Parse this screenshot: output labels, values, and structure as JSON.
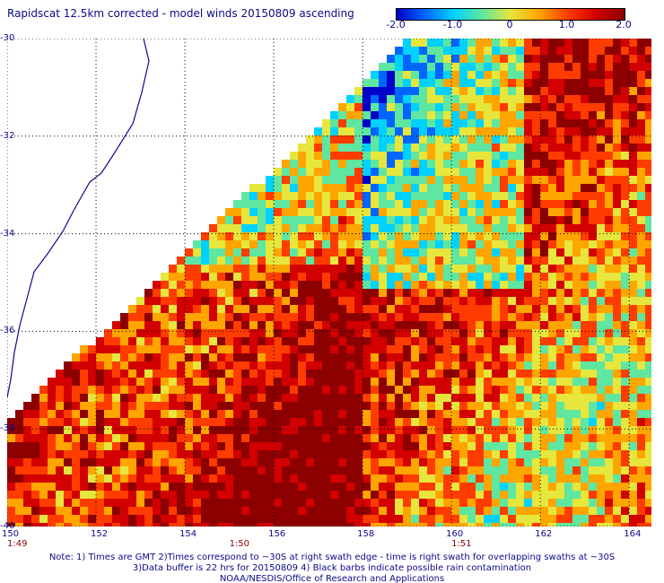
{
  "title": "Rapidscat 12.5km corrected - model winds 20150809 ascending",
  "colorbar": {
    "ticks": [
      "-2.0",
      "-1.0",
      "0",
      "1.0",
      "2.0"
    ],
    "tick_values": [
      -2.0,
      -1.0,
      0,
      1.0,
      2.0
    ],
    "colors": [
      "#0000c8",
      "#0066ff",
      "#00d2ff",
      "#5fe6a0",
      "#e6e63c",
      "#ffa500",
      "#ff3c00",
      "#d20000",
      "#8c0000"
    ]
  },
  "axes": {
    "lon_labels": [
      "150",
      "152",
      "154",
      "156",
      "158",
      "160",
      "162",
      "164"
    ],
    "lon_values": [
      150,
      152,
      154,
      156,
      158,
      160,
      162,
      164
    ],
    "lat_labels": [
      "-30",
      "-32",
      "-34",
      "-36",
      "-38",
      "-40"
    ],
    "lat_values": [
      -30,
      -32,
      -34,
      -36,
      -38,
      -40
    ],
    "lon_range": [
      150,
      164.5
    ],
    "lat_range": [
      -30,
      -40
    ]
  },
  "time_labels": [
    {
      "text": "1:49",
      "lon": 150
    },
    {
      "text": "1:50",
      "lon": 155
    },
    {
      "text": "1:51",
      "lon": 160
    }
  ],
  "notes": [
    "Note: 1) Times are GMT 2)Times correspond to ~30S at right swath edge - time is right swath for overlapping swaths at ~30S",
    "3)Data buffer is 22 hrs for 20150809 4) Black barbs indicate possible rain contamination",
    "NOAA/NESDIS/Office of Research and Applications"
  ]
}
